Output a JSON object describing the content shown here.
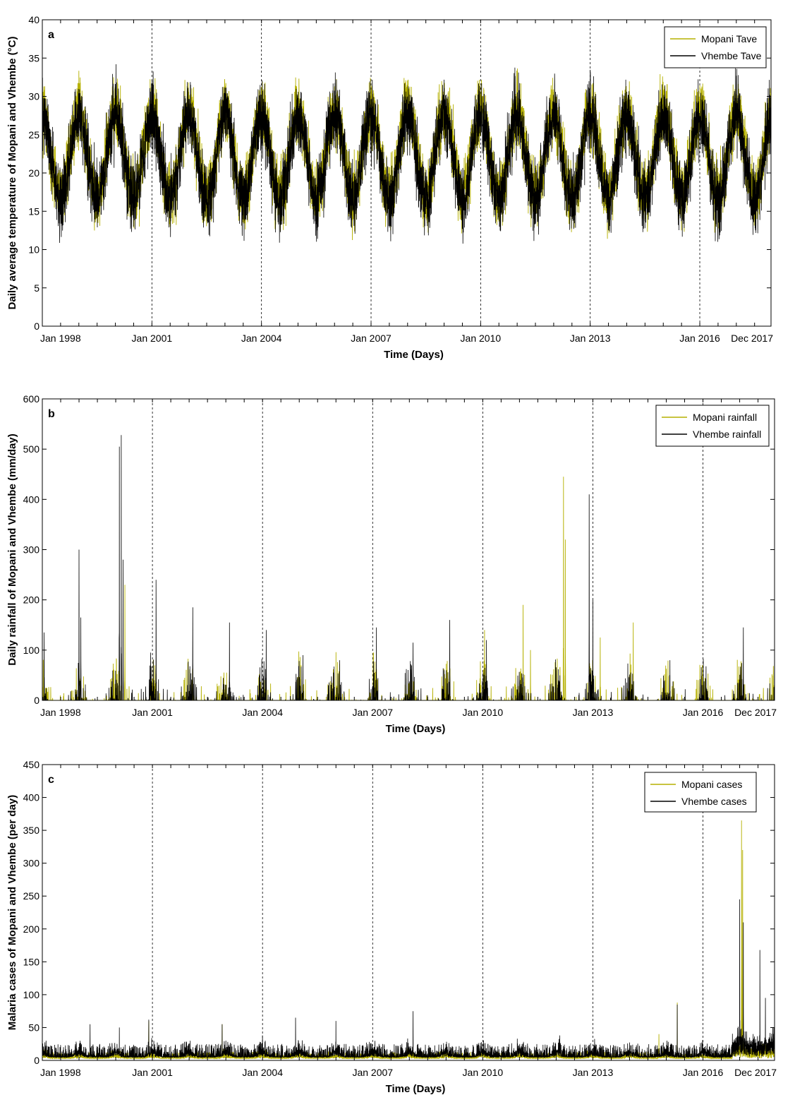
{
  "chart_data": [
    {
      "type": "line",
      "panel": "a",
      "xlabel": "Time (Days)",
      "ylabel": "Daily average temperature of Mopani and Vhembe (°C)",
      "x_start": "Jan 1998",
      "x_end": "Dec 2017",
      "x_tick_labels": [
        "Jan 1998",
        "Jan 2001",
        "Jan 2004",
        "Jan 2007",
        "Jan 2010",
        "Jan 2013",
        "Jan 2016",
        "Dec 2017"
      ],
      "ylim": [
        0,
        40
      ],
      "y_ticks": [
        0,
        5,
        10,
        15,
        20,
        25,
        30,
        35,
        40
      ],
      "grid": "vertical-dashed-at-year-ticks",
      "legend": "top-right",
      "series": [
        {
          "name": "Mopani Tave",
          "color": "#b5b000",
          "seasonal_mean": 22.5,
          "seasonal_amplitude": 5.5,
          "noise": 3.0
        },
        {
          "name": "Vhembe Tave",
          "color": "#000000",
          "seasonal_mean": 22.0,
          "seasonal_amplitude": 5.5,
          "noise": 3.2
        }
      ]
    },
    {
      "type": "line",
      "panel": "b",
      "xlabel": "Time (Days)",
      "ylabel": "Daily rainfall of Mopani and Vhembe (mm/day)",
      "x_start": "Jan 1998",
      "x_end": "Dec 2017",
      "x_tick_labels": [
        "Jan 1998",
        "Jan 2001",
        "Jan 2004",
        "Jan 2007",
        "Jan 2010",
        "Jan 2013",
        "Jan 2016",
        "Dec 2017"
      ],
      "ylim": [
        0,
        600
      ],
      "y_ticks": [
        0,
        100,
        200,
        300,
        400,
        500,
        600
      ],
      "grid": "vertical-dashed-at-year-ticks",
      "legend": "top-right",
      "series": [
        {
          "name": "Mopani rainfall",
          "color": "#b5b000",
          "peaks": [
            [
              2000.25,
              230
            ],
            [
              2010.05,
              140
            ],
            [
              2011.1,
              190
            ],
            [
              2011.3,
              100
            ],
            [
              2012.2,
              445
            ],
            [
              2012.25,
              320
            ],
            [
              2013.2,
              125
            ],
            [
              2014.1,
              155
            ]
          ]
        },
        {
          "name": "Vhembe rainfall",
          "color": "#000000",
          "peaks": [
            [
              1998.05,
              135
            ],
            [
              1999.0,
              300
            ],
            [
              1999.05,
              165
            ],
            [
              2000.1,
              505
            ],
            [
              2000.15,
              528
            ],
            [
              2000.2,
              280
            ],
            [
              2000.95,
              95
            ],
            [
              2001.1,
              240
            ],
            [
              2002.1,
              185
            ],
            [
              2003.1,
              155
            ],
            [
              2004.1,
              140
            ],
            [
              2005.1,
              90
            ],
            [
              2006.1,
              80
            ],
            [
              2007.1,
              145
            ],
            [
              2008.1,
              115
            ],
            [
              2009.1,
              160
            ],
            [
              2010.1,
              120
            ],
            [
              2012.9,
              410
            ],
            [
              2013.0,
              200
            ],
            [
              2015.1,
              80
            ],
            [
              2017.1,
              145
            ]
          ]
        }
      ]
    },
    {
      "type": "line",
      "panel": "c",
      "xlabel": "Time (Days)",
      "ylabel": "Malaria cases of Mopani and Vhembe (per day)",
      "x_start": "Jan 1998",
      "x_end": "Dec 2017",
      "x_tick_labels": [
        "Jan 1998",
        "Jan 2001",
        "Jan 2004",
        "Jan 2007",
        "Jan 2010",
        "Jan 2013",
        "Jan 2016",
        "Dec 2017"
      ],
      "ylim": [
        0,
        450
      ],
      "y_ticks": [
        0,
        50,
        100,
        150,
        200,
        250,
        300,
        350,
        400,
        450
      ],
      "grid": "vertical-dashed-at-year-ticks",
      "legend": "top-right",
      "series": [
        {
          "name": "Mopani cases",
          "color": "#b5b000",
          "peaks": [
            [
              2000.9,
              60
            ],
            [
              2002.9,
              55
            ],
            [
              2014.8,
              40
            ],
            [
              2015.3,
              88
            ],
            [
              2017.05,
              365
            ],
            [
              2017.08,
              320
            ]
          ]
        },
        {
          "name": "Vhembe cases",
          "color": "#000000",
          "peaks": [
            [
              1998.1,
              30
            ],
            [
              1999.3,
              55
            ],
            [
              2000.1,
              50
            ],
            [
              2000.9,
              62
            ],
            [
              2002.9,
              55
            ],
            [
              2004.0,
              38
            ],
            [
              2004.9,
              65
            ],
            [
              2006.0,
              60
            ],
            [
              2008.1,
              75
            ],
            [
              2012.1,
              38
            ],
            [
              2015.3,
              85
            ],
            [
              2017.0,
              245
            ],
            [
              2017.1,
              210
            ],
            [
              2017.55,
              168
            ],
            [
              2017.7,
              95
            ]
          ]
        }
      ]
    }
  ]
}
